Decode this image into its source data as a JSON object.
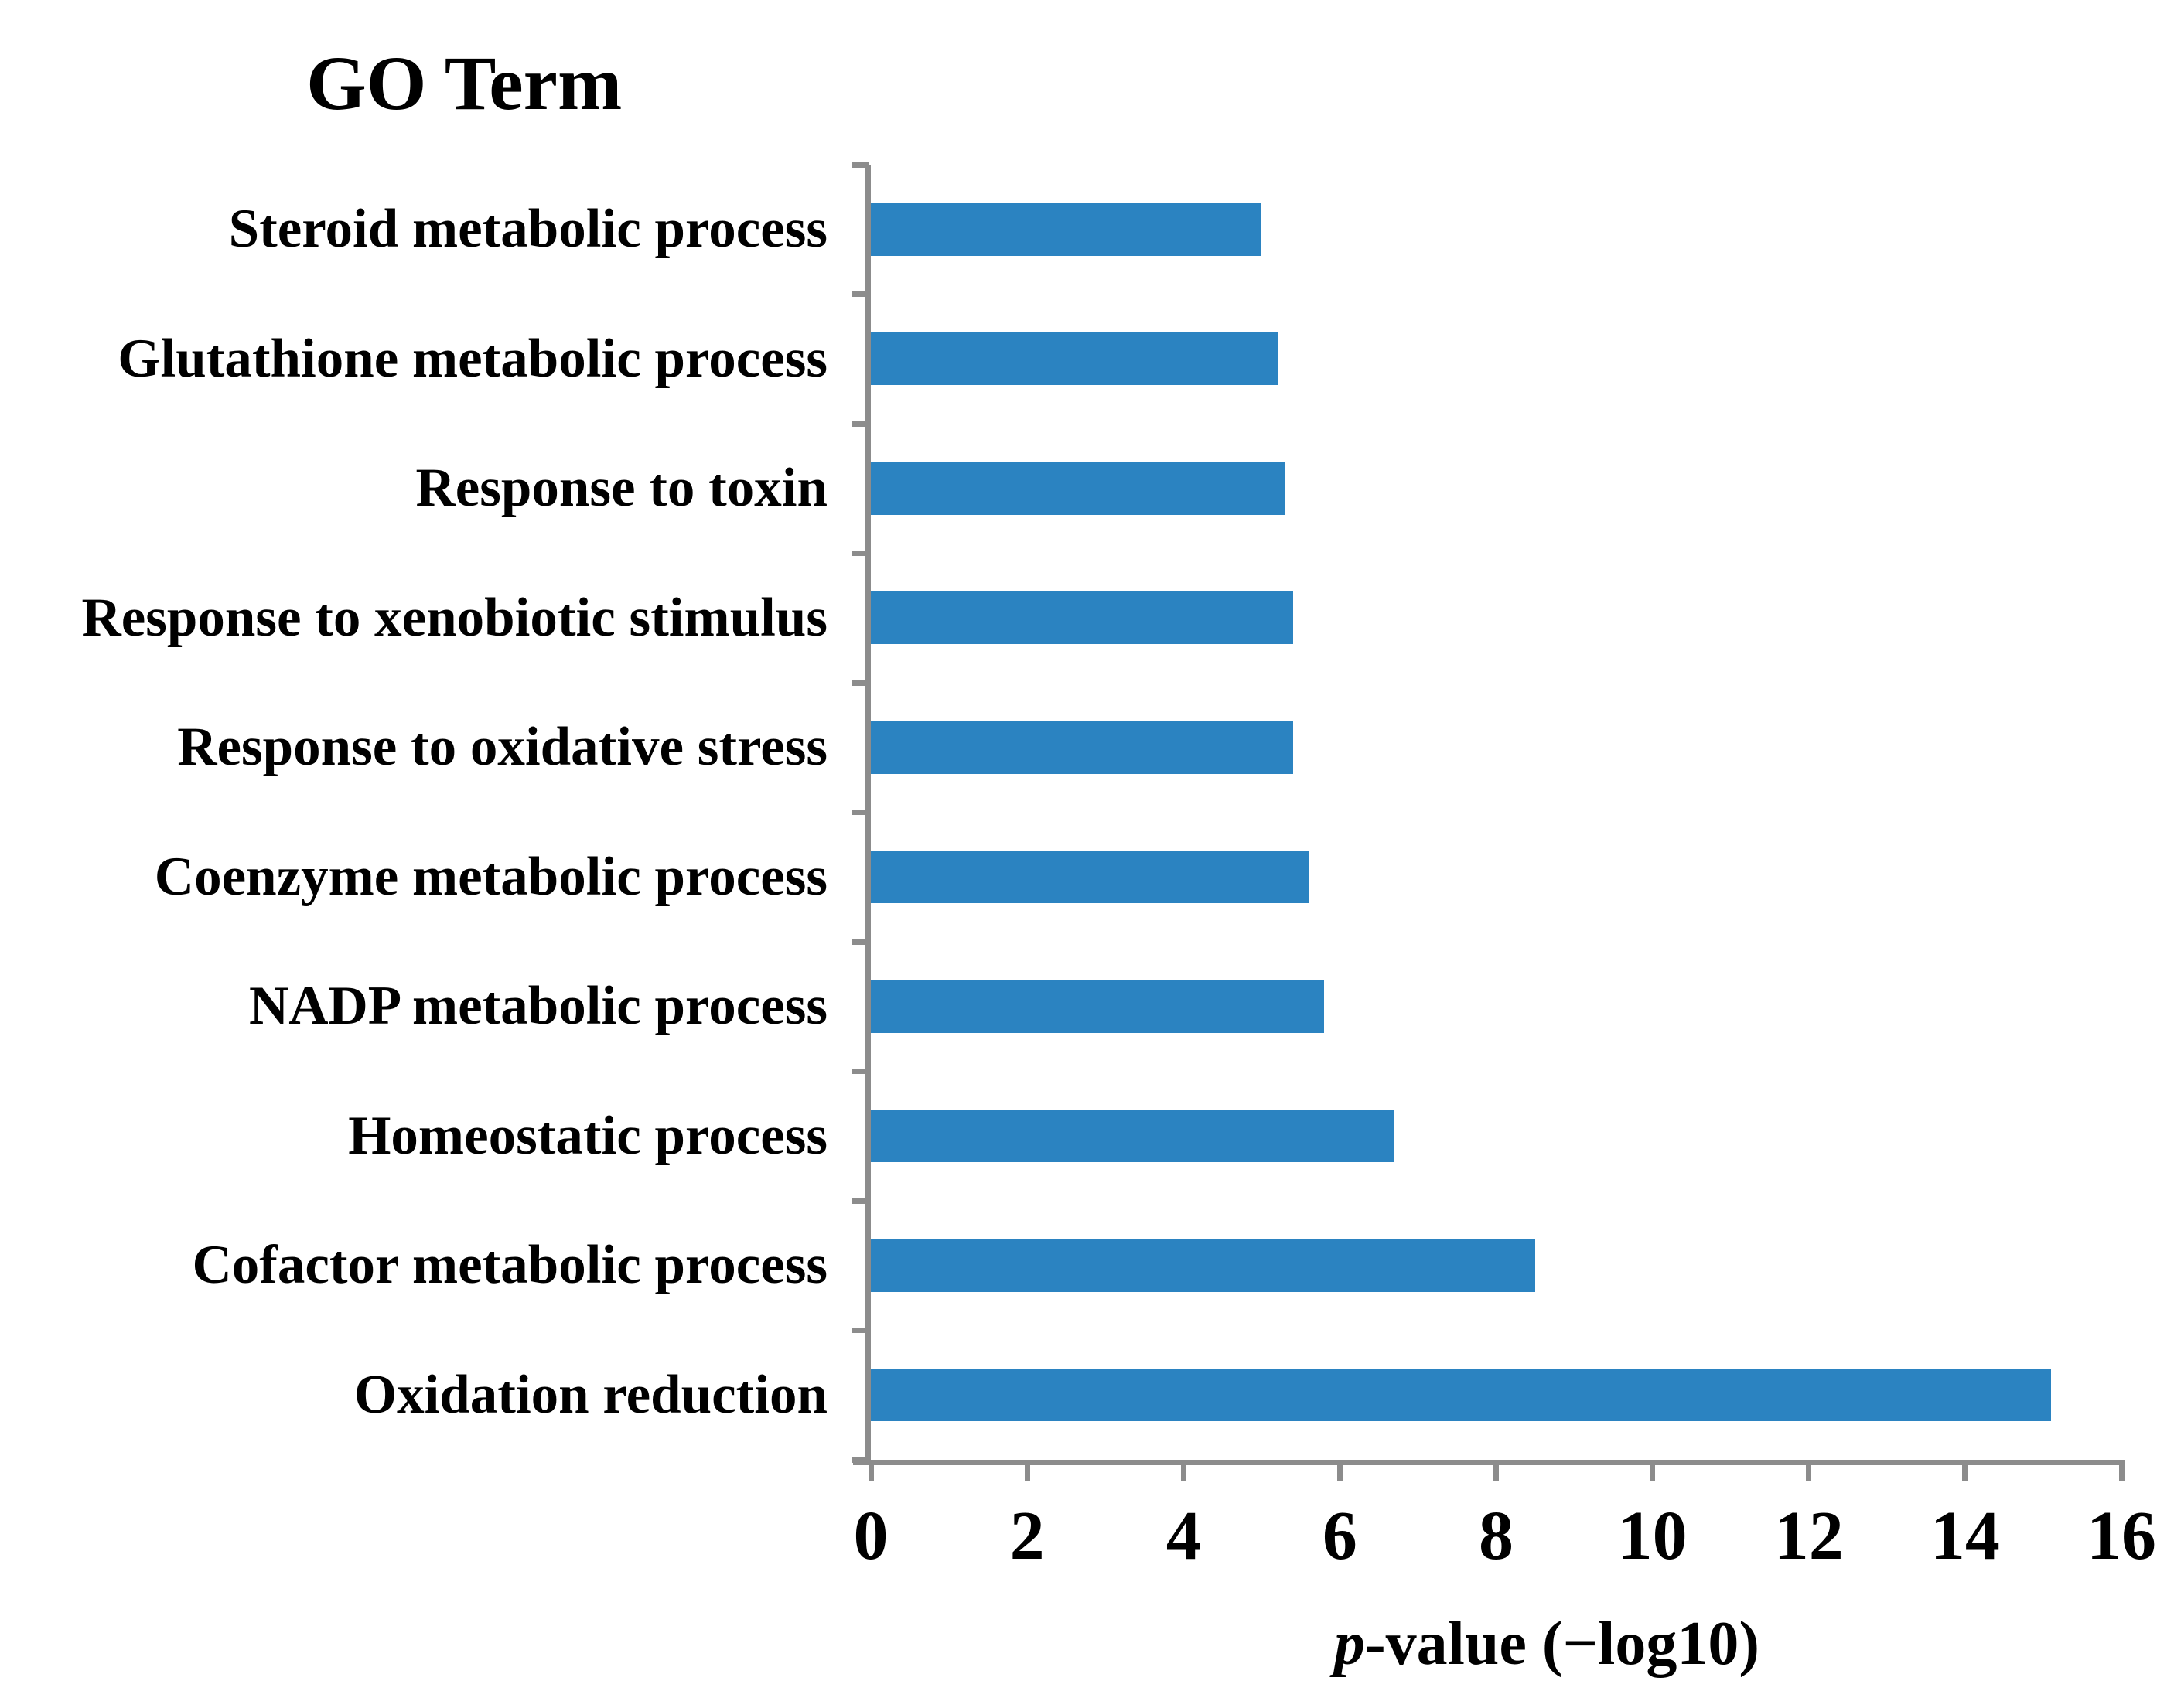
{
  "figure": {
    "title": "GO Term",
    "xlabel_italic": "p",
    "xlabel_rest": "-value (−log10)"
  },
  "chart_data": {
    "type": "bar",
    "orientation": "horizontal",
    "title": "GO Term",
    "xlabel": "p-value (−log10)",
    "categories": [
      "Steroid metabolic process",
      "Glutathione metabolic process",
      "Response to toxin",
      "Response to xenobiotic stimulus",
      "Response to oxidative stress",
      "Coenzyme metabolic process",
      "NADP metabolic process",
      "Homeostatic process",
      "Cofactor metabolic process",
      "Oxidation reduction"
    ],
    "values": [
      5.0,
      5.2,
      5.3,
      5.4,
      5.4,
      5.6,
      5.8,
      6.7,
      8.5,
      15.1
    ],
    "xlim": [
      0,
      16
    ],
    "x_ticks": [
      0,
      2,
      4,
      6,
      8,
      10,
      12,
      14,
      16
    ],
    "bar_color": "#2B83C1",
    "axis_color": "#8C8C8C",
    "text_color": "#000000",
    "grid": false,
    "legend": null
  }
}
